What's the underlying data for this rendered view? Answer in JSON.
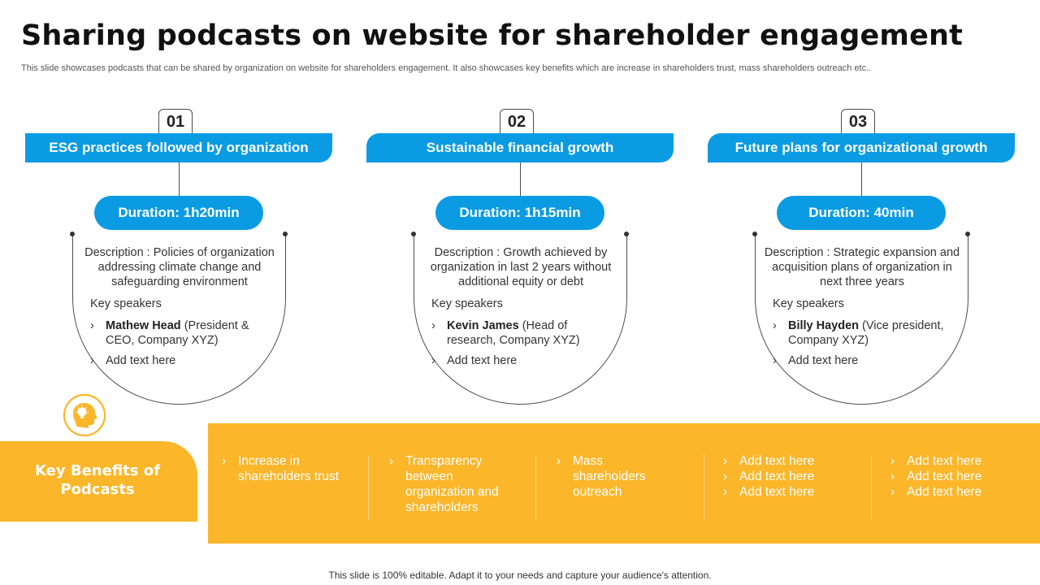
{
  "title": "Sharing podcasts on website for shareholder engagement",
  "subtitle": "This slide showcases podcasts that can be shared by organization on website for shareholders engagement. It also showcases key benefits which are increase in shareholders trust, mass shareholders outreach etc..",
  "colors": {
    "accent_blue": "#0a9be3",
    "accent_yellow": "#fbb62a"
  },
  "key_speakers_label": "Key speakers",
  "chevron": "›",
  "cards": [
    {
      "number": "01",
      "topic": "ESG practices followed by organization",
      "duration": "Duration: 1h20min",
      "description": "Description : Policies of organization addressing climate change and safeguarding environment",
      "speaker_name": "Mathew Head",
      "speaker_role": " (President & CEO, Company XYZ)",
      "extra": "Add text here"
    },
    {
      "number": "02",
      "topic": "Sustainable financial growth",
      "duration": "Duration: 1h15min",
      "description": "Description : Growth achieved by organization in last 2 years without additional equity or debt",
      "speaker_name": "Kevin James",
      "speaker_role": " (Head of research, Company XYZ)",
      "extra": "Add text here"
    },
    {
      "number": "03",
      "topic": "Future plans for organizational growth",
      "duration": "Duration: 40min",
      "description": "Description : Strategic expansion and acquisition plans of organization in next three years",
      "speaker_name": "Billy Hayden",
      "speaker_role": " (Vice president, Company XYZ)",
      "extra": "Add text here"
    }
  ],
  "benefits": {
    "title": "Key Benefits of Podcasts",
    "icon": "head-lightbulb-icon",
    "columns": [
      [
        "Increase in shareholders trust"
      ],
      [
        "Transparency between organization and shareholders"
      ],
      [
        "Mass shareholders outreach"
      ],
      [
        "Add text here",
        "Add text here",
        "Add text here"
      ],
      [
        "Add text here",
        "Add text here",
        "Add text here"
      ]
    ]
  },
  "footer": "This slide is 100% editable. Adapt it to your needs and capture your audience's attention."
}
